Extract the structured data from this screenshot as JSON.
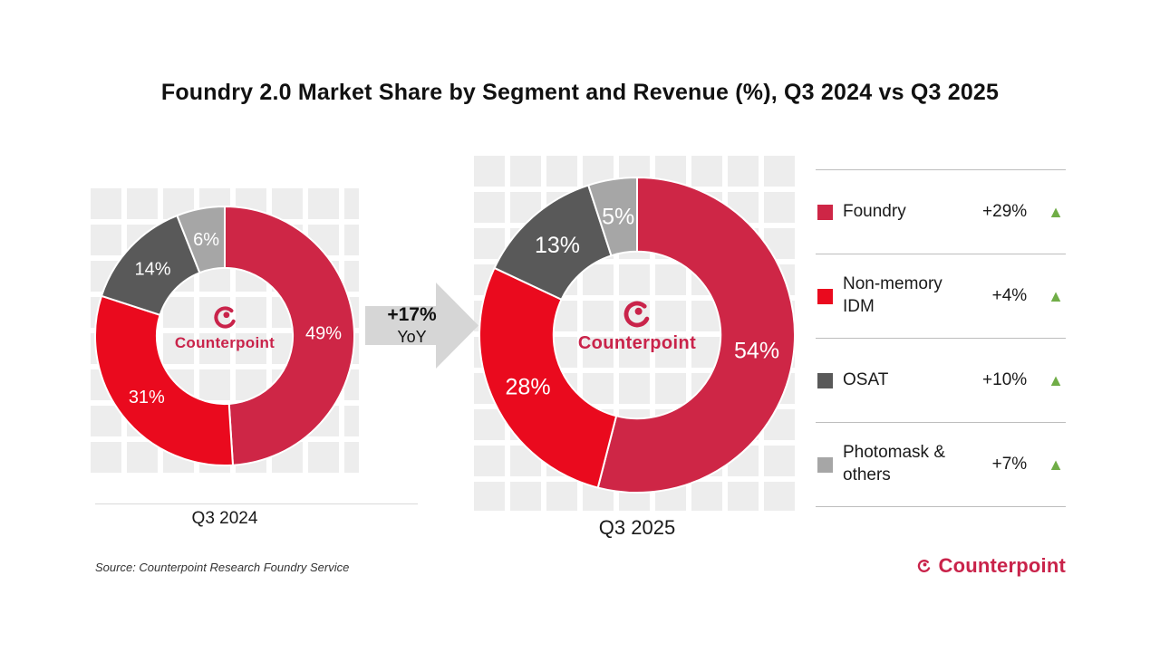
{
  "title": "Foundry 2.0 Market Share by Segment and Revenue (%), Q3 2024 vs Q3 2025",
  "arrow": {
    "line1": "+17%",
    "line2": "YoY"
  },
  "source": "Source: Counterpoint Research Foundry Service",
  "brand": {
    "name": "Counterpoint"
  },
  "colors": {
    "foundry": "#CE2646",
    "non_memory_idm": "#EA0A1E",
    "osat": "#595959",
    "photomask": "#A6A6A6",
    "growth_green": "#70AD47",
    "arrow_gray": "#D6D6D6",
    "brand_crimson": "#C9234A"
  },
  "chart_data": [
    {
      "type": "pie",
      "donut": true,
      "title": "Q3 2024",
      "labels": [
        "Foundry",
        "Non-memory IDM",
        "OSAT",
        "Photomask & others"
      ],
      "values": [
        49,
        31,
        14,
        6
      ],
      "unit": "%",
      "colors": [
        "#CE2646",
        "#EA0A1E",
        "#595959",
        "#A6A6A6"
      ],
      "start_angle_deg": 0,
      "direction": "clockwise",
      "center_text": "Counterpoint"
    },
    {
      "type": "pie",
      "donut": true,
      "title": "Q3 2025",
      "labels": [
        "Foundry",
        "Non-memory IDM",
        "OSAT",
        "Photomask & others"
      ],
      "values": [
        54,
        28,
        13,
        5
      ],
      "unit": "%",
      "colors": [
        "#CE2646",
        "#EA0A1E",
        "#595959",
        "#A6A6A6"
      ],
      "start_angle_deg": 0,
      "direction": "clockwise",
      "center_text": "Counterpoint"
    }
  ],
  "legend": {
    "items": [
      {
        "label": "Foundry",
        "change": "+29%",
        "color": "#CE2646",
        "trend": "up"
      },
      {
        "label": "Non-memory IDM",
        "change": "+4%",
        "color": "#EA0A1E",
        "trend": "up"
      },
      {
        "label": "OSAT",
        "change": "+10%",
        "color": "#595959",
        "trend": "up"
      },
      {
        "label": "Photomask & others",
        "change": "+7%",
        "color": "#A6A6A6",
        "trend": "up"
      }
    ]
  }
}
